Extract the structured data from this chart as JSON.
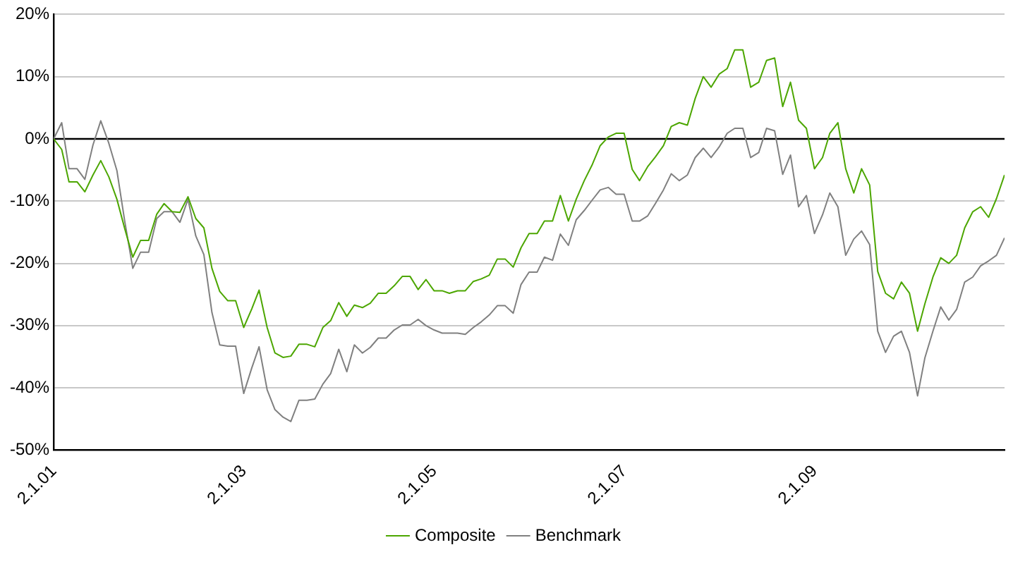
{
  "chart_data": {
    "type": "line",
    "x": [
      "2001-01",
      "2001-02",
      "2001-03",
      "2001-04",
      "2001-05",
      "2001-06",
      "2001-07",
      "2001-08",
      "2001-09",
      "2001-10",
      "2001-11",
      "2001-12",
      "2002-01",
      "2002-02",
      "2002-03",
      "2002-04",
      "2002-05",
      "2002-06",
      "2002-07",
      "2002-08",
      "2002-09",
      "2002-10",
      "2002-11",
      "2002-12",
      "2003-01",
      "2003-02",
      "2003-03",
      "2003-04",
      "2003-05",
      "2003-06",
      "2003-07",
      "2003-08",
      "2003-09",
      "2003-10",
      "2003-11",
      "2003-12",
      "2004-01",
      "2004-02",
      "2004-03",
      "2004-04",
      "2004-05",
      "2004-06",
      "2004-07",
      "2004-08",
      "2004-09",
      "2004-10",
      "2004-11",
      "2004-12",
      "2005-01",
      "2005-02",
      "2005-03",
      "2005-04",
      "2005-05",
      "2005-06",
      "2005-07",
      "2005-08",
      "2005-09",
      "2005-10",
      "2005-11",
      "2005-12",
      "2006-01",
      "2006-02",
      "2006-03",
      "2006-04",
      "2006-05",
      "2006-06",
      "2006-07",
      "2006-08",
      "2006-09",
      "2006-10",
      "2006-11",
      "2006-12",
      "2007-01",
      "2007-02",
      "2007-03",
      "2007-04",
      "2007-05",
      "2007-06",
      "2007-07",
      "2007-08",
      "2007-09",
      "2007-10",
      "2007-11",
      "2007-12",
      "2008-01",
      "2008-02",
      "2008-03",
      "2008-04",
      "2008-05",
      "2008-06",
      "2008-07",
      "2008-08",
      "2008-09",
      "2008-10",
      "2008-11",
      "2008-12",
      "2009-01",
      "2009-02",
      "2009-03",
      "2009-04",
      "2009-05",
      "2009-06",
      "2009-07",
      "2009-08",
      "2009-09",
      "2009-10",
      "2009-11",
      "2009-12",
      "2010-01",
      "2010-02",
      "2010-03",
      "2010-04",
      "2010-05",
      "2010-06",
      "2010-07",
      "2010-08",
      "2010-09",
      "2010-10",
      "2010-11",
      "2010-12",
      "2011-01"
    ],
    "series": [
      {
        "name": "Composite",
        "color": "#4ca600",
        "values": [
          0,
          -1.7,
          -6.9,
          -6.9,
          -8.5,
          -5.8,
          -3.5,
          -6.1,
          -9.7,
          -14.4,
          -19.0,
          -16.3,
          -16.3,
          -12.1,
          -10.4,
          -11.7,
          -11.8,
          -9.3,
          -12.8,
          -14.3,
          -20.8,
          -24.5,
          -26.0,
          -26.0,
          -30.3,
          -27.3,
          -24.3,
          -30.3,
          -34.4,
          -35.1,
          -34.9,
          -33.0,
          -33.0,
          -33.4,
          -30.3,
          -29.2,
          -26.3,
          -28.5,
          -26.7,
          -27.1,
          -26.4,
          -24.8,
          -24.8,
          -23.6,
          -22.1,
          -22.1,
          -24.2,
          -22.6,
          -24.4,
          -24.4,
          -24.8,
          -24.4,
          -24.4,
          -22.9,
          -22.5,
          -21.9,
          -19.3,
          -19.3,
          -20.6,
          -17.5,
          -15.2,
          -15.2,
          -13.2,
          -13.2,
          -9.1,
          -13.2,
          -9.7,
          -6.7,
          -4.1,
          -1.1,
          0.3,
          0.9,
          0.9,
          -4.9,
          -6.7,
          -4.5,
          -2.9,
          -1.1,
          2.0,
          2.6,
          2.2,
          6.5,
          10.0,
          8.3,
          10.4,
          11.3,
          14.3,
          14.3,
          8.3,
          9.1,
          12.6,
          13.0,
          5.2,
          9.1,
          3.0,
          1.7,
          -4.8,
          -3.0,
          0.9,
          2.6,
          -4.8,
          -8.7,
          -4.8,
          -7.4,
          -21.3,
          -24.8,
          -25.7,
          -23.0,
          -24.8,
          -30.9,
          -26.5,
          -22.2,
          -19.1,
          -20.0,
          -18.7,
          -14.3,
          -11.7,
          -10.9,
          -12.6,
          -9.6,
          -5.8
        ]
      },
      {
        "name": "Benchmark",
        "color": "#808080",
        "values": [
          0,
          2.6,
          -4.8,
          -4.8,
          -6.5,
          -1.0,
          2.9,
          -0.7,
          -5.1,
          -13.2,
          -20.8,
          -18.2,
          -18.2,
          -12.8,
          -11.7,
          -11.7,
          -13.4,
          -9.7,
          -15.6,
          -18.6,
          -27.9,
          -33.1,
          -33.3,
          -33.3,
          -40.9,
          -36.8,
          -33.4,
          -40.3,
          -43.5,
          -44.7,
          -45.4,
          -42.0,
          -42.0,
          -41.8,
          -39.4,
          -37.7,
          -33.8,
          -37.4,
          -33.1,
          -34.4,
          -33.5,
          -32.0,
          -32.0,
          -30.7,
          -29.9,
          -29.9,
          -29.0,
          -30.0,
          -30.7,
          -31.2,
          -31.2,
          -31.2,
          -31.4,
          -30.3,
          -29.4,
          -28.3,
          -26.8,
          -26.8,
          -28.0,
          -23.4,
          -21.4,
          -21.4,
          -19.0,
          -19.5,
          -15.3,
          -17.1,
          -13.0,
          -11.5,
          -9.8,
          -8.2,
          -7.8,
          -8.9,
          -8.9,
          -13.2,
          -13.2,
          -12.4,
          -10.4,
          -8.2,
          -5.6,
          -6.7,
          -5.8,
          -3.0,
          -1.5,
          -3.0,
          -1.3,
          0.9,
          1.7,
          1.7,
          -3.0,
          -2.2,
          1.7,
          1.3,
          -5.7,
          -2.6,
          -10.9,
          -9.1,
          -15.2,
          -12.2,
          -8.7,
          -10.9,
          -18.7,
          -16.1,
          -14.8,
          -17.0,
          -30.9,
          -34.3,
          -31.7,
          -30.9,
          -34.3,
          -41.3,
          -35.2,
          -30.9,
          -27.0,
          -29.1,
          -27.4,
          -23.0,
          -22.2,
          -20.4,
          -19.6,
          -18.7,
          -15.9
        ]
      }
    ],
    "xlim": [
      "2001-01-01",
      "2011-01-01"
    ],
    "xticks": [
      {
        "value": "2001-01-02",
        "label": "2.1.01"
      },
      {
        "value": "2003-01-02",
        "label": "2.1.03"
      },
      {
        "value": "2005-01-02",
        "label": "2.1.05"
      },
      {
        "value": "2007-01-02",
        "label": "2.1.07"
      },
      {
        "value": "2009-01-02",
        "label": "2.1.09"
      }
    ],
    "ylim": [
      -50,
      20
    ],
    "yticks": [
      {
        "value": -50,
        "label": "-50%"
      },
      {
        "value": -40,
        "label": "-40%"
      },
      {
        "value": -30,
        "label": "-30%"
      },
      {
        "value": -20,
        "label": "-20%"
      },
      {
        "value": -10,
        "label": "-10%"
      },
      {
        "value": 0,
        "label": "0%"
      },
      {
        "value": 10,
        "label": "10%"
      },
      {
        "value": 20,
        "label": "20%"
      }
    ],
    "ref_lines": [
      {
        "axis": "y",
        "value": 0,
        "color": "#000000"
      }
    ],
    "grid": "y",
    "legend": "bottom",
    "marker": "none",
    "line_style": "solid"
  }
}
